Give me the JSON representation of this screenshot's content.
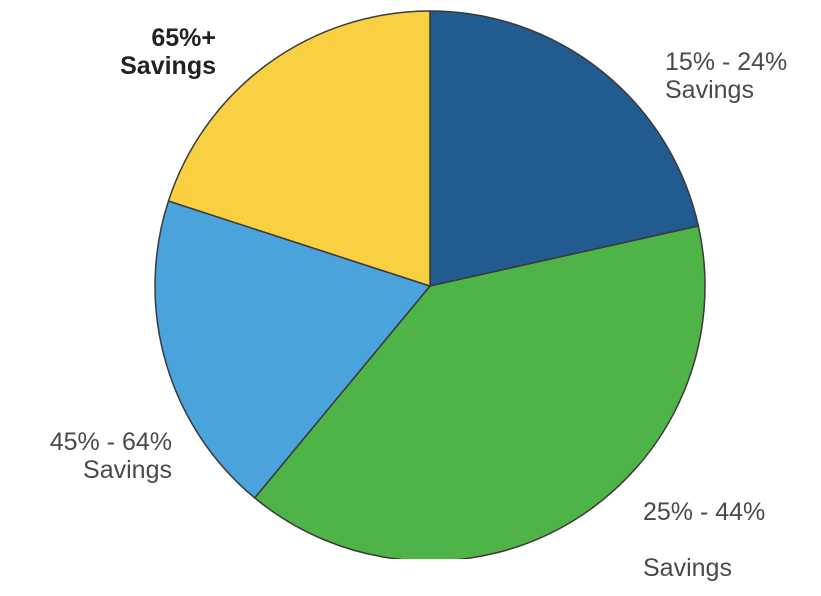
{
  "chart_data": {
    "type": "pie",
    "title": "",
    "legend": "none",
    "slices": [
      {
        "label_lines": [
          "15% - 24%",
          "Savings"
        ],
        "value": 21.5,
        "color": "#215b8f",
        "emphasized": false
      },
      {
        "label_lines": [
          "25% - 44%",
          "Savings"
        ],
        "value": 39.5,
        "color": "#4fb447",
        "emphasized": false
      },
      {
        "label_lines": [
          "45% - 64%",
          "Savings"
        ],
        "value": 19.0,
        "color": "#4aa3da",
        "emphasized": false
      },
      {
        "label_lines": [
          "65%+",
          "Savings"
        ],
        "value": 20.0,
        "color": "#f8d042",
        "emphasized": true
      }
    ],
    "slice_border_color": "#3a3a3a"
  }
}
